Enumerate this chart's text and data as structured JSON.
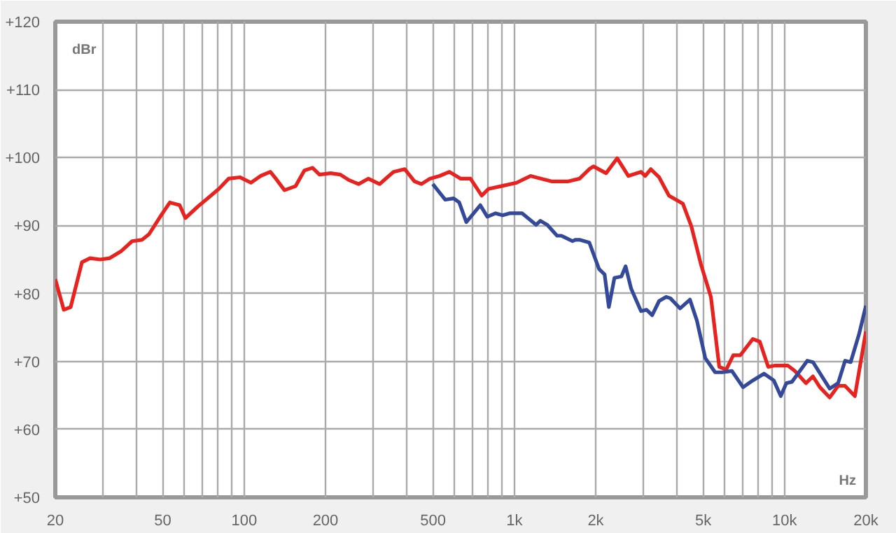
{
  "chart_data": {
    "type": "line",
    "xlabel": "Hz",
    "ylabel": "dBr",
    "log": "x",
    "grid": true,
    "line_style": "solid",
    "xlim": [
      20,
      20000
    ],
    "ylim": [
      50,
      120
    ],
    "xticks": [
      20,
      {
        "value": 30,
        "label": null
      },
      {
        "value": 40,
        "label": null
      },
      50,
      {
        "value": 60,
        "label": null
      },
      {
        "value": 70,
        "label": null
      },
      {
        "value": 80,
        "label": null
      },
      {
        "value": 90,
        "label": null
      },
      100,
      200,
      {
        "value": 300,
        "label": null
      },
      {
        "value": 400,
        "label": null
      },
      500,
      {
        "value": 600,
        "label": null
      },
      {
        "value": 700,
        "label": null
      },
      {
        "value": 800,
        "label": null
      },
      {
        "value": 900,
        "label": null
      },
      {
        "value": 1000,
        "label": "1k"
      },
      {
        "value": 2000,
        "label": "2k"
      },
      {
        "value": 3000,
        "label": null
      },
      {
        "value": 4000,
        "label": null
      },
      {
        "value": 5000,
        "label": "5k"
      },
      {
        "value": 6000,
        "label": null
      },
      {
        "value": 7000,
        "label": null
      },
      {
        "value": 8000,
        "label": null
      },
      {
        "value": 9000,
        "label": null
      },
      {
        "value": 10000,
        "label": "10k"
      },
      {
        "value": 20000,
        "label": "20k"
      }
    ],
    "yticks": [
      {
        "value": 50,
        "label": "+50"
      },
      {
        "value": 60,
        "label": "+60"
      },
      {
        "value": 70,
        "label": "+70"
      },
      {
        "value": 80,
        "label": "+80"
      },
      {
        "value": 90,
        "label": "+90"
      },
      {
        "value": 100,
        "label": "+100"
      },
      {
        "value": 110,
        "label": "+110"
      },
      {
        "value": 120,
        "label": "+120"
      }
    ],
    "series": [
      {
        "color": "#e8231f",
        "x": [
          20,
          21.5,
          22.8,
          25.1,
          26.9,
          29.3,
          31.8,
          35,
          38.5,
          41.9,
          44.4,
          48.9,
          53.1,
          57.7,
          60.6,
          67.4,
          73.3,
          80.6,
          87.6,
          96.4,
          106,
          115,
          125,
          131,
          141,
          155,
          167,
          179,
          190,
          209,
          227,
          244,
          265,
          288,
          317,
          357,
          393,
          427,
          453,
          487,
          529,
          575,
          633,
          688,
          757,
          803,
          894,
          1019,
          1148,
          1373,
          1583,
          1742,
          1893,
          1962,
          2185,
          2402,
          2642,
          2942,
          3050,
          3198,
          3434,
          3734,
          4206,
          4518,
          4910,
          5338,
          5732,
          6084,
          6458,
          6854,
          7630,
          8098,
          8698,
          9230,
          10276,
          10910,
          12000,
          12734,
          13516,
          14690,
          15780,
          16750,
          18204,
          20000
        ],
        "values": [
          82.1,
          77.6,
          78.0,
          84.6,
          85.2,
          85.0,
          85.2,
          86.2,
          87.7,
          87.9,
          88.7,
          91.3,
          93.4,
          93.0,
          91.1,
          92.8,
          94.0,
          95.4,
          96.9,
          97.1,
          96.3,
          97.3,
          97.9,
          96.9,
          95.2,
          95.8,
          98.1,
          98.5,
          97.5,
          97.7,
          97.5,
          96.7,
          96.1,
          96.9,
          96.1,
          97.9,
          98.3,
          96.5,
          96.1,
          96.9,
          97.3,
          97.9,
          96.9,
          96.9,
          94.4,
          95.4,
          95.8,
          96.3,
          97.3,
          96.5,
          96.5,
          96.9,
          98.3,
          98.7,
          97.7,
          99.9,
          97.3,
          97.9,
          97.3,
          98.3,
          97.1,
          94.4,
          93.2,
          89.9,
          84.2,
          79.5,
          69.2,
          68.8,
          70.9,
          70.9,
          73.3,
          72.9,
          69.2,
          69.4,
          69.4,
          68.6,
          66.8,
          67.8,
          66.2,
          64.7,
          66.4,
          66.4,
          64.9,
          74.4
        ]
      },
      {
        "color": "#34499a",
        "x": [
          499,
          555,
          596,
          625,
          664,
          748,
          794,
          852,
          905,
          960,
          1069,
          1204,
          1248,
          1324,
          1439,
          1492,
          1528,
          1641,
          1681,
          1742,
          1893,
          2058,
          2158,
          2237,
          2346,
          2490,
          2580,
          2706,
          2942,
          3086,
          3236,
          3434,
          3646,
          3778,
          4106,
          4464,
          4738,
          5088,
          5532,
          5872,
          6382,
          7020,
          7630,
          8392,
          9122,
          9682,
          10154,
          10650,
          12140,
          12734,
          14690,
          15780,
          16750,
          17566,
          18864,
          20000
        ],
        "values": [
          96.1,
          93.8,
          94.0,
          93.4,
          90.5,
          93.0,
          91.3,
          91.8,
          91.5,
          91.8,
          91.8,
          90.1,
          90.7,
          90.1,
          88.5,
          88.5,
          88.3,
          87.7,
          87.9,
          87.9,
          87.5,
          83.6,
          82.8,
          78.0,
          82.3,
          82.5,
          84.0,
          80.7,
          77.4,
          77.6,
          76.8,
          78.9,
          79.5,
          79.3,
          77.8,
          79.1,
          76.0,
          70.5,
          68.4,
          68.4,
          68.6,
          66.2,
          67.2,
          68.2,
          67.2,
          64.9,
          66.8,
          67.0,
          70.1,
          69.9,
          66.0,
          66.8,
          70.1,
          69.9,
          74.0,
          78.2
        ]
      }
    ]
  }
}
